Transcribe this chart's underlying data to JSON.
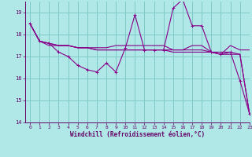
{
  "bg_color": "#b0e8e8",
  "line_color": "#880088",
  "grid_color": "#80c8c8",
  "xlabel": "Windchill (Refroidissement éolien,°C)",
  "ylim": [
    14,
    19.5
  ],
  "xlim": [
    -0.5,
    23
  ],
  "yticks": [
    14,
    15,
    16,
    17,
    18,
    19
  ],
  "xticks": [
    0,
    1,
    2,
    3,
    4,
    5,
    6,
    7,
    8,
    9,
    10,
    11,
    12,
    13,
    14,
    15,
    16,
    17,
    18,
    19,
    20,
    21,
    22,
    23
  ],
  "series": [
    [
      18.5,
      17.7,
      17.6,
      17.2,
      17.0,
      16.6,
      16.4,
      16.3,
      16.7,
      16.3,
      17.4,
      18.9,
      17.3,
      17.3,
      17.3,
      19.2,
      19.6,
      18.4,
      18.4,
      17.2,
      17.1,
      17.2,
      15.9,
      14.4
    ],
    [
      18.5,
      17.7,
      17.6,
      17.5,
      17.5,
      17.4,
      17.4,
      17.4,
      17.4,
      17.5,
      17.5,
      17.5,
      17.5,
      17.5,
      17.5,
      17.3,
      17.3,
      17.5,
      17.5,
      17.2,
      17.1,
      17.5,
      17.3,
      17.3
    ],
    [
      18.5,
      17.7,
      17.6,
      17.5,
      17.5,
      17.4,
      17.4,
      17.3,
      17.3,
      17.3,
      17.3,
      17.3,
      17.3,
      17.3,
      17.3,
      17.2,
      17.2,
      17.2,
      17.2,
      17.2,
      17.1,
      17.1,
      17.1,
      14.4
    ],
    [
      18.5,
      17.7,
      17.5,
      17.5,
      17.5,
      17.4,
      17.4,
      17.3,
      17.3,
      17.3,
      17.3,
      17.3,
      17.3,
      17.3,
      17.3,
      17.3,
      17.3,
      17.3,
      17.3,
      17.2,
      17.2,
      17.2,
      17.1,
      14.4
    ]
  ],
  "tick_color": "#660066",
  "label_fontsize": 4.5,
  "ylabel_fontsize": 5.0,
  "xlabel_fontsize": 5.5
}
